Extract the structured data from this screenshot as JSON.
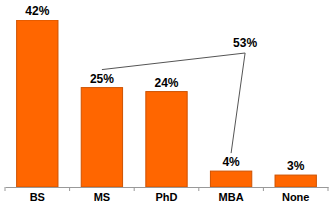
{
  "chart_data": {
    "type": "bar",
    "categories": [
      "BS",
      "MS",
      "PhD",
      "MBA",
      "None"
    ],
    "values": [
      42,
      25,
      24,
      4,
      3
    ],
    "value_labels": [
      "42%",
      "25%",
      "24%",
      "4%",
      "3%"
    ],
    "color": "#ff6600",
    "ylim": [
      0,
      42
    ],
    "data_labels": true,
    "tick_labels": "x",
    "annotations": [
      {
        "text": "53%",
        "from": "MS",
        "to": "MBA"
      }
    ]
  }
}
